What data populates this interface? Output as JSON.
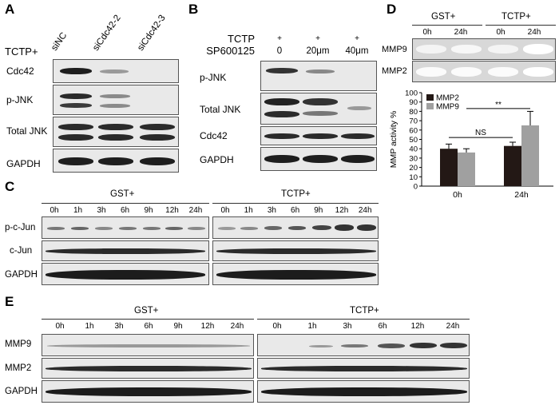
{
  "panels": {
    "a": {
      "letter": "A",
      "header": "TCTP+",
      "lanes": [
        "siNC",
        "siCdc42-2",
        "siCdc42-3"
      ],
      "rows": [
        "Cdc42",
        "p-JNK",
        "Total JNK",
        "GAPDH"
      ]
    },
    "b": {
      "letter": "B",
      "header_row1_label": "TCTP",
      "header_row2_label": "SP600125",
      "plus": [
        "+",
        "+",
        "+"
      ],
      "doses": [
        "0",
        "20μm",
        "40μm"
      ],
      "rows": [
        "p-JNK",
        "Total JNK",
        "Cdc42",
        "GAPDH"
      ]
    },
    "c": {
      "letter": "C",
      "groups": [
        "GST+",
        "TCTP+"
      ],
      "times": [
        "0h",
        "1h",
        "3h",
        "6h",
        "9h",
        "12h",
        "24h"
      ],
      "rows": [
        "p-c-Jun",
        "c-Jun",
        "GAPDH"
      ]
    },
    "d": {
      "letter": "D",
      "groups": [
        "GST+",
        "TCTP+"
      ],
      "times": [
        "0h",
        "24h",
        "0h",
        "24h"
      ],
      "rows": [
        "MMP9",
        "MMP2"
      ]
    },
    "e": {
      "letter": "E",
      "groups": [
        "GST+",
        "TCTP+"
      ],
      "times": [
        "0h",
        "1h",
        "3h",
        "6h",
        "9h",
        "12h",
        "24h"
      ],
      "times_tctp": [
        "0h",
        "1h",
        "3h",
        "6h",
        "12h",
        "24h"
      ],
      "rows": [
        "MMP9",
        "MMP2",
        "GAPDH"
      ]
    }
  },
  "colors": {
    "mmp2": "#231815",
    "mmp9": "#a0a0a0",
    "band": "#2a2a2a"
  },
  "chart_data": {
    "type": "bar",
    "categories": [
      "0h",
      "24h"
    ],
    "series": [
      {
        "name": "MMP2",
        "values": [
          40,
          43
        ],
        "errors": [
          5,
          4
        ]
      },
      {
        "name": "MMP9",
        "values": [
          36,
          65
        ],
        "errors": [
          4,
          15
        ]
      }
    ],
    "ylabel": "MMP activity %",
    "ylim": [
      0,
      100
    ],
    "yticks": [
      "0",
      "10",
      "20",
      "30",
      "40",
      "50",
      "60",
      "70",
      "80",
      "90",
      "100"
    ],
    "annotations": [
      "NS",
      "**"
    ],
    "legend_position": "top-left",
    "grid": false
  }
}
